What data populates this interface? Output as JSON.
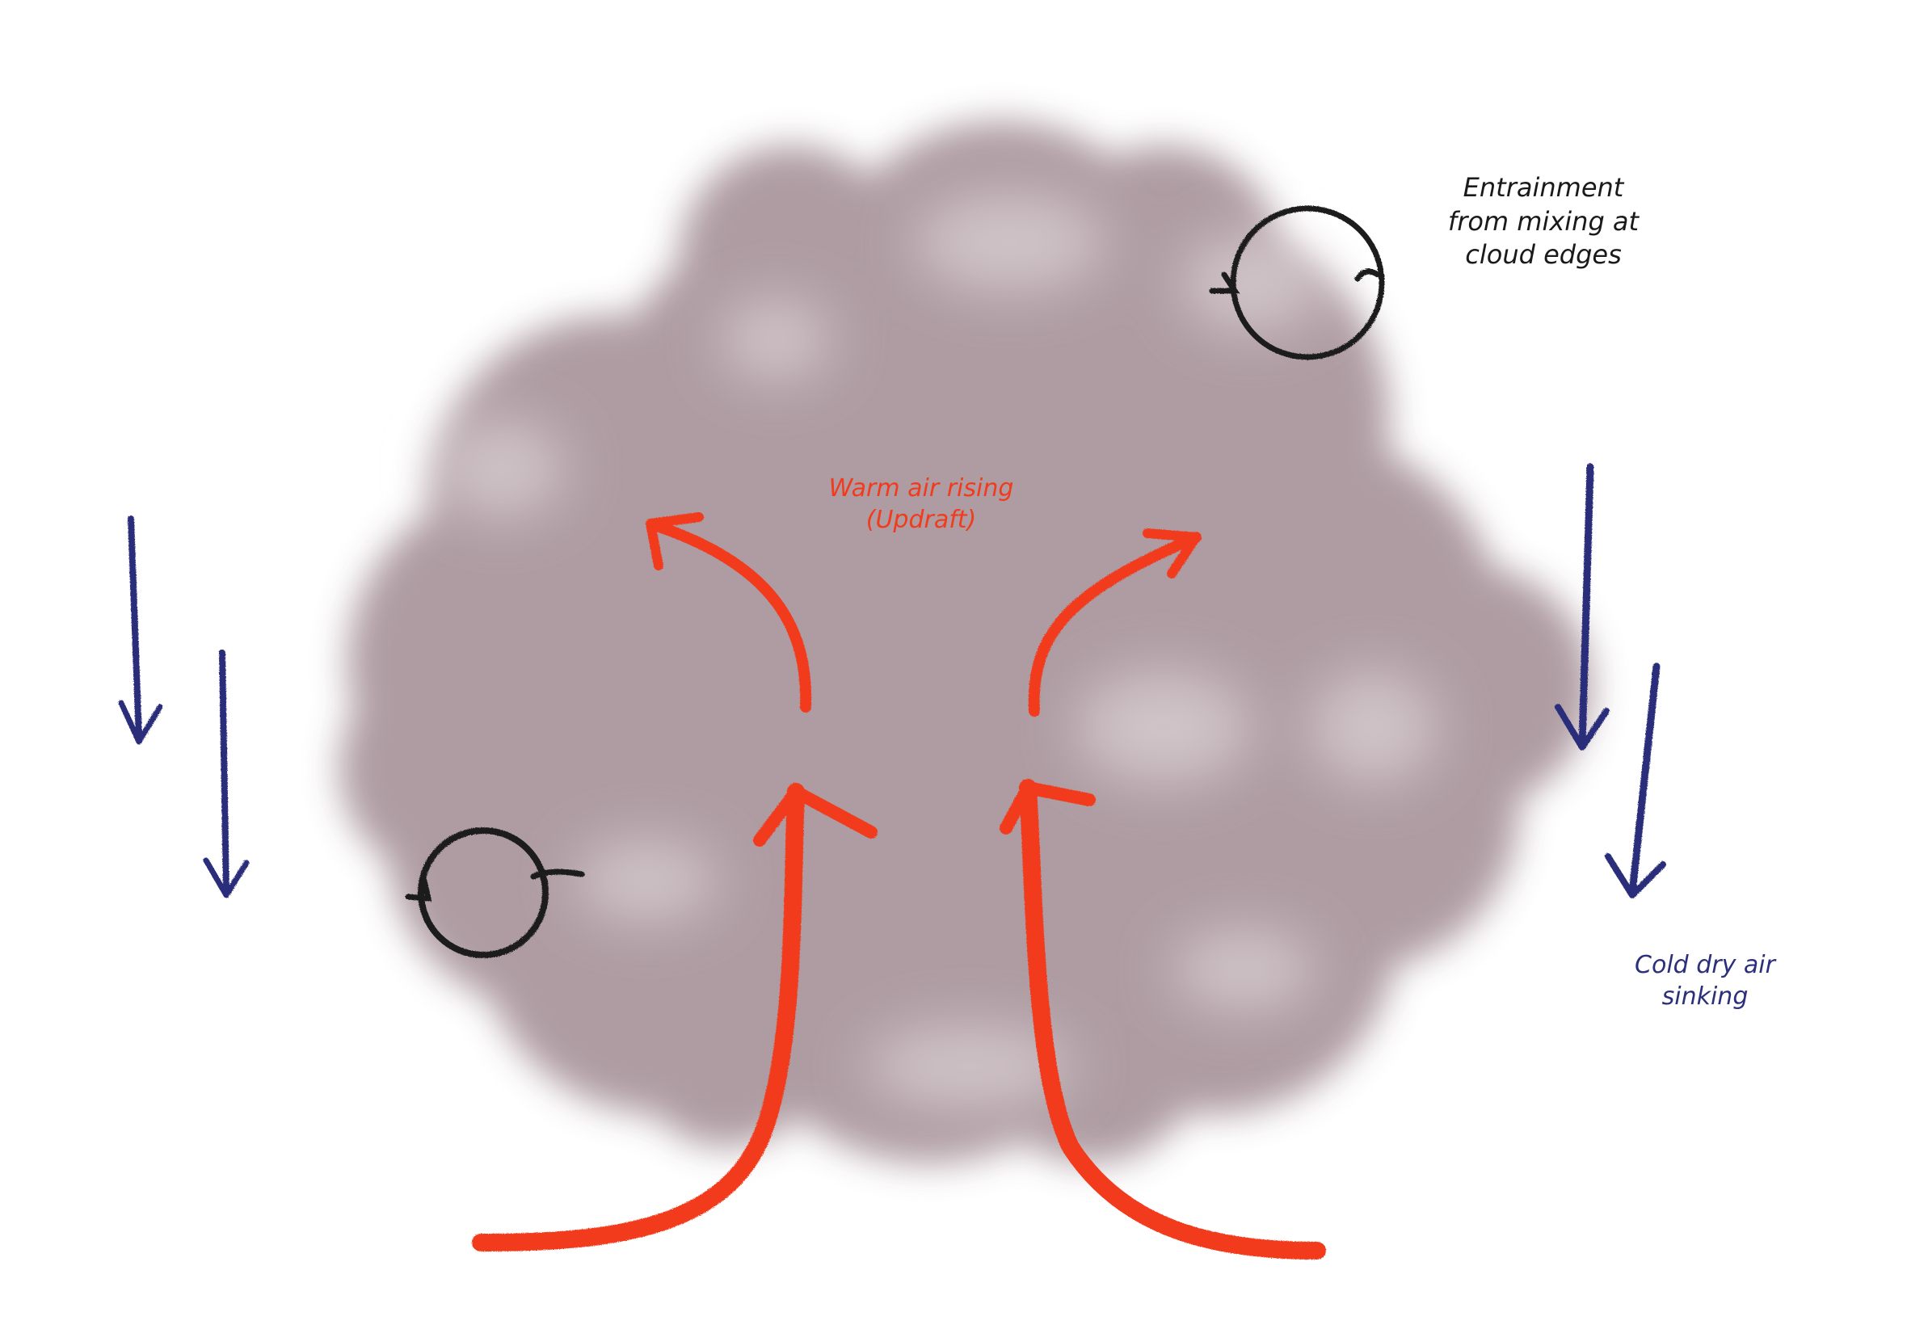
{
  "labels": {
    "entrainment": "Entrainment\nfrom mixing at\ncloud edges",
    "updraft": "Warm air rising\n(Updraft)",
    "downdraft": "Cold dry air\nsinking"
  },
  "colors": {
    "cloud": "#a8949b",
    "cloud_highlight": "#ece5e7",
    "updraft": "#f23a1c",
    "downdraft": "#2c2f7a",
    "entrainment": "#1a1a1a"
  }
}
